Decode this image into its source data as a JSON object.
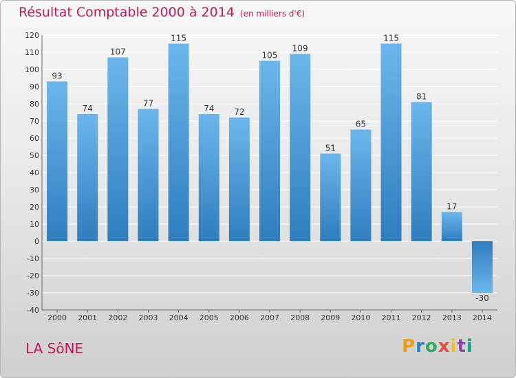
{
  "chart_data": {
    "type": "bar",
    "title": "Résultat Comptable 2000 à 2014",
    "subtitle": "(en milliers d'€)",
    "categories": [
      "2000",
      "2001",
      "2002",
      "2003",
      "2004",
      "2005",
      "2006",
      "2007",
      "2008",
      "2009",
      "2010",
      "2011",
      "2012",
      "2013",
      "2014"
    ],
    "values": [
      93,
      74,
      107,
      77,
      115,
      74,
      72,
      105,
      109,
      51,
      65,
      115,
      81,
      17,
      -30
    ],
    "ylim": [
      -40,
      120
    ],
    "yticks": [
      -40,
      -30,
      -20,
      -10,
      0,
      10,
      20,
      30,
      40,
      50,
      60,
      70,
      80,
      90,
      100,
      110,
      120
    ],
    "grid": true,
    "xlabel": "",
    "ylabel": ""
  },
  "footer": {
    "commune": "LA SôNE",
    "logo_letters": [
      "P",
      "r",
      "o",
      "x",
      "i",
      "t",
      "i"
    ],
    "logo_colors": [
      "#f39c12",
      "#2980b9",
      "#27ae60",
      "#e74c3c",
      "#f1c40f",
      "#8e44ad",
      "#16a085"
    ]
  },
  "colors": {
    "title": "#c2185b",
    "bar_top": "#6bb6ec",
    "bar_bottom": "#2f7dbd",
    "grid": "#ffffff"
  }
}
